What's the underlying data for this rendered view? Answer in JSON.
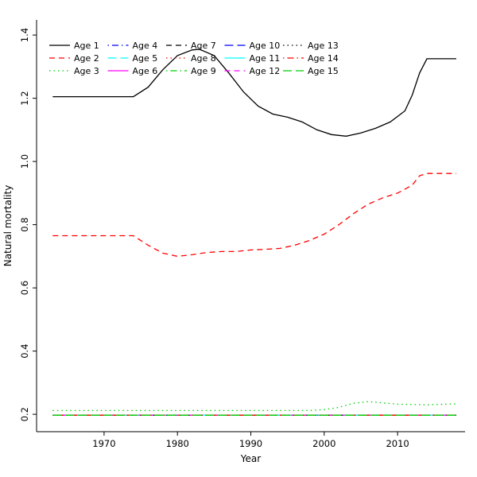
{
  "figure": {
    "background": "#ffffff",
    "axis_color": "#000000"
  },
  "chart_data": {
    "type": "line",
    "title": "",
    "xlabel": "Year",
    "ylabel": "Natural mortality",
    "xlim": [
      1960.8,
      2019.2
    ],
    "ylim": [
      0.145,
      1.448
    ],
    "x_ticks": [
      1970,
      1980,
      1990,
      2000,
      2010
    ],
    "y_ticks": [
      0.2,
      0.4,
      0.6,
      0.8,
      1.0,
      1.2,
      1.4
    ],
    "grid": false,
    "legend": {
      "position": "top-left",
      "ncol": 5,
      "nrow": 3,
      "fill": "column-major"
    },
    "series": [
      {
        "name": "Age 1",
        "color": "#000000",
        "linetype": "solid",
        "points": [
          [
            1963,
            1.205
          ],
          [
            1974,
            1.205
          ],
          [
            1976,
            1.235
          ],
          [
            1978,
            1.29
          ],
          [
            1980,
            1.335
          ],
          [
            1982,
            1.353
          ],
          [
            1983,
            1.355
          ],
          [
            1985,
            1.335
          ],
          [
            1987,
            1.28
          ],
          [
            1989,
            1.22
          ],
          [
            1991,
            1.175
          ],
          [
            1993,
            1.15
          ],
          [
            1995,
            1.14
          ],
          [
            1997,
            1.125
          ],
          [
            1999,
            1.1
          ],
          [
            2001,
            1.085
          ],
          [
            2003,
            1.08
          ],
          [
            2005,
            1.09
          ],
          [
            2007,
            1.105
          ],
          [
            2009,
            1.125
          ],
          [
            2011,
            1.16
          ],
          [
            2012,
            1.21
          ],
          [
            2013,
            1.28
          ],
          [
            2014,
            1.325
          ],
          [
            2018,
            1.325
          ]
        ]
      },
      {
        "name": "Age 2",
        "color": "#FF0000",
        "linetype": "dashed",
        "points": [
          [
            1963,
            0.765
          ],
          [
            1974,
            0.765
          ],
          [
            1976,
            0.735
          ],
          [
            1978,
            0.71
          ],
          [
            1980,
            0.7
          ],
          [
            1982,
            0.705
          ],
          [
            1984,
            0.712
          ],
          [
            1986,
            0.715
          ],
          [
            1988,
            0.715
          ],
          [
            1990,
            0.72
          ],
          [
            1992,
            0.722
          ],
          [
            1994,
            0.725
          ],
          [
            1996,
            0.735
          ],
          [
            1998,
            0.75
          ],
          [
            2000,
            0.77
          ],
          [
            2002,
            0.8
          ],
          [
            2004,
            0.835
          ],
          [
            2006,
            0.865
          ],
          [
            2008,
            0.885
          ],
          [
            2010,
            0.9
          ],
          [
            2012,
            0.925
          ],
          [
            2013,
            0.955
          ],
          [
            2014,
            0.962
          ],
          [
            2018,
            0.962
          ]
        ]
      },
      {
        "name": "Age 3",
        "color": "#00CD00",
        "linetype": "dotted",
        "points": [
          [
            1963,
            0.212
          ],
          [
            1998,
            0.212
          ],
          [
            2000,
            0.215
          ],
          [
            2002,
            0.222
          ],
          [
            2004,
            0.235
          ],
          [
            2006,
            0.24
          ],
          [
            2008,
            0.236
          ],
          [
            2010,
            0.232
          ],
          [
            2014,
            0.23
          ],
          [
            2018,
            0.233
          ]
        ]
      },
      {
        "name": "Age 4",
        "color": "#0000FF",
        "linetype": "dotdash",
        "points": [
          [
            1963,
            0.197
          ],
          [
            2018,
            0.197
          ]
        ]
      },
      {
        "name": "Age 5",
        "color": "#00FFFF",
        "linetype": "longdash",
        "points": [
          [
            1963,
            0.197
          ],
          [
            2018,
            0.197
          ]
        ]
      },
      {
        "name": "Age 6",
        "color": "#FF00FF",
        "linetype": "solid",
        "points": [
          [
            1963,
            0.197
          ],
          [
            2018,
            0.197
          ]
        ]
      },
      {
        "name": "Age 7",
        "color": "#000000",
        "linetype": "dashed",
        "points": [
          [
            1963,
            0.197
          ],
          [
            2018,
            0.197
          ]
        ]
      },
      {
        "name": "Age 8",
        "color": "#FF0000",
        "linetype": "dotted",
        "points": [
          [
            1963,
            0.197
          ],
          [
            2018,
            0.197
          ]
        ]
      },
      {
        "name": "Age 9",
        "color": "#00CD00",
        "linetype": "dotdash",
        "points": [
          [
            1963,
            0.197
          ],
          [
            2018,
            0.197
          ]
        ]
      },
      {
        "name": "Age 10",
        "color": "#0000FF",
        "linetype": "longdash",
        "points": [
          [
            1963,
            0.197
          ],
          [
            2018,
            0.197
          ]
        ]
      },
      {
        "name": "Age 11",
        "color": "#00FFFF",
        "linetype": "solid",
        "points": [
          [
            1963,
            0.197
          ],
          [
            2018,
            0.197
          ]
        ]
      },
      {
        "name": "Age 12",
        "color": "#FF00FF",
        "linetype": "dashed",
        "points": [
          [
            1963,
            0.197
          ],
          [
            2018,
            0.197
          ]
        ]
      },
      {
        "name": "Age 13",
        "color": "#000000",
        "linetype": "dotted",
        "points": [
          [
            1963,
            0.197
          ],
          [
            2018,
            0.197
          ]
        ]
      },
      {
        "name": "Age 14",
        "color": "#FF0000",
        "linetype": "dotdash",
        "points": [
          [
            1963,
            0.197
          ],
          [
            2018,
            0.197
          ]
        ]
      },
      {
        "name": "Age 15",
        "color": "#00CD00",
        "linetype": "longdash",
        "points": [
          [
            1963,
            0.197
          ],
          [
            2018,
            0.197
          ]
        ]
      }
    ]
  }
}
